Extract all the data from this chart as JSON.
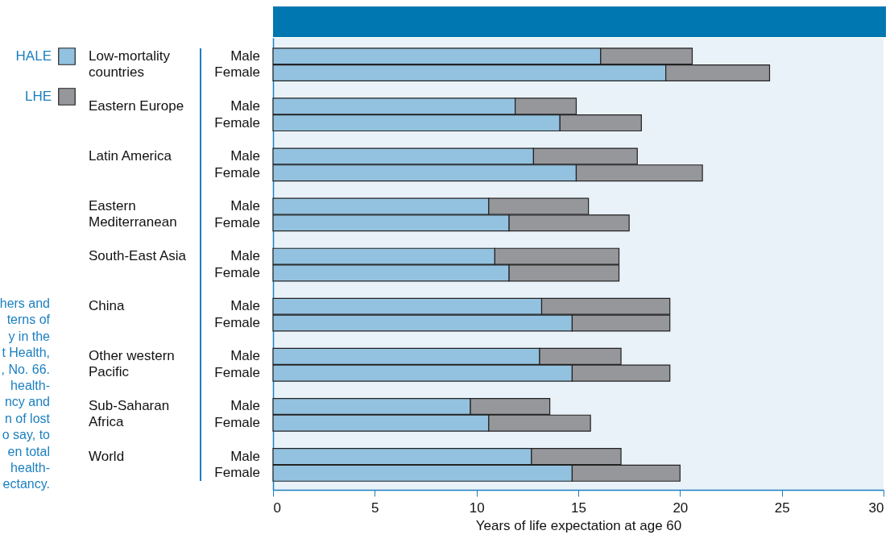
{
  "chart_data": {
    "type": "bar",
    "orientation": "horizontal",
    "stacked": true,
    "categories": [
      "Male",
      "Female",
      "Male",
      "Female",
      "Male",
      "Female",
      "Male",
      "Female",
      "Male",
      "Female",
      "Male",
      "Female",
      "Male",
      "Female",
      "Male",
      "Female",
      "Male",
      "Female"
    ],
    "series": [
      {
        "name": "HALE",
        "color": "#93c2e0",
        "values": [
          16.1,
          19.3,
          11.9,
          14.1,
          12.8,
          14.9,
          10.6,
          11.6,
          10.9,
          11.6,
          13.2,
          14.7,
          13.1,
          14.7,
          9.7,
          10.6,
          12.7,
          14.7
        ]
      },
      {
        "name": "LHE",
        "color": "#96979b",
        "values": [
          4.5,
          5.1,
          3.0,
          4.0,
          5.1,
          6.2,
          4.9,
          5.9,
          6.1,
          5.4,
          6.3,
          4.8,
          4.0,
          4.8,
          3.9,
          5.0,
          4.4,
          5.3
        ]
      }
    ],
    "xlabel": "Years of life expectation at age 60",
    "xlim": [
      0,
      30
    ],
    "xticks": [
      0,
      5,
      10,
      15,
      20,
      25,
      30
    ],
    "grid": false,
    "legend": "top left",
    "annotations": [
      "Low-mortality countries",
      "Eastern Europe",
      "Latin America",
      "Eastern Mediterranean",
      "South-East Asia",
      "China",
      "Other western Pacific",
      "Sub-Saharan Africa",
      "World",
      "hers and\nterns of\ny in the\nt Health,\n, No. 66.\n health-\nncy and\nn of lost\no say, to\nen total\n health-\nectancy."
    ]
  }
}
